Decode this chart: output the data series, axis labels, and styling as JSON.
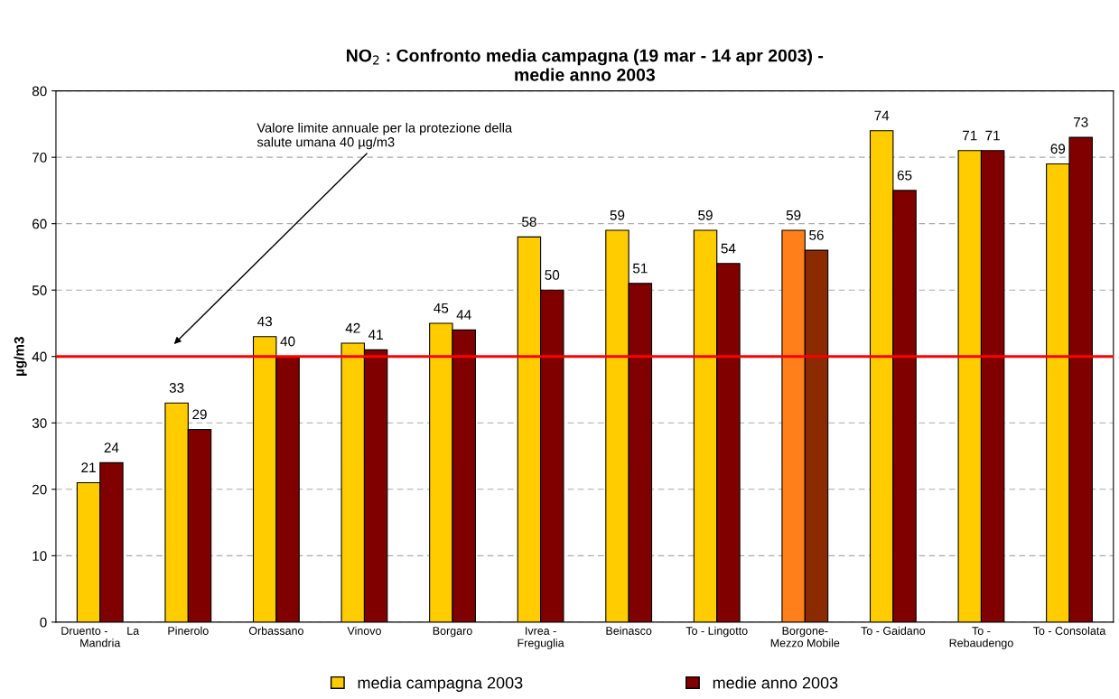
{
  "chart_data": {
    "type": "bar",
    "title": "NO$_{2}$ : Confronto media campagna (19 mar - 14 apr 2003) -\nmedie anno 2003",
    "ylabel": "µg/m3",
    "categories": [
      "Druento -      La\nMandria",
      "Pinerolo",
      "Orbassano",
      "Vinovo",
      "Borgaro",
      "Ivrea -\nFreguglia",
      "Beinasco",
      "To - Lingotto",
      "Borgone-\nMezzo Mobile",
      "To - Gaidano",
      "To -\nRebaudengo",
      "To - Consolata"
    ],
    "series": [
      {
        "name": "media campagna 2003",
        "color": "#ffcc00",
        "colors": [
          "#ffcc00",
          "#ffcc00",
          "#ffcc00",
          "#ffcc00",
          "#ffcc00",
          "#ffcc00",
          "#ffcc00",
          "#ffcc00",
          "#ff7f1a",
          "#ffcc00",
          "#ffcc00",
          "#ffcc00"
        ],
        "values": [
          21,
          33,
          43,
          42,
          45,
          58,
          59,
          59,
          59,
          74,
          71,
          69
        ]
      },
      {
        "name": "medie anno 2003",
        "color": "#800000",
        "colors": [
          "#800000",
          "#800000",
          "#800000",
          "#800000",
          "#800000",
          "#800000",
          "#800000",
          "#800000",
          "#8b2a00",
          "#800000",
          "#800000",
          "#800000"
        ],
        "values": [
          24,
          29,
          40,
          41,
          44,
          50,
          51,
          54,
          56,
          65,
          71,
          73
        ]
      }
    ],
    "ylim": [
      0,
      80
    ],
    "yticks": [
      0,
      10,
      20,
      30,
      40,
      50,
      60,
      70,
      80
    ],
    "grid": "y",
    "legend": "bottom",
    "data_labels": true,
    "ref_lines": [
      {
        "axis": "y",
        "value": 40,
        "color": "#ff0000",
        "line_style": "solid"
      }
    ],
    "annotations": [
      "Valore limite annuale per la protezione della\nsalute umana 40 µg/m3"
    ]
  }
}
